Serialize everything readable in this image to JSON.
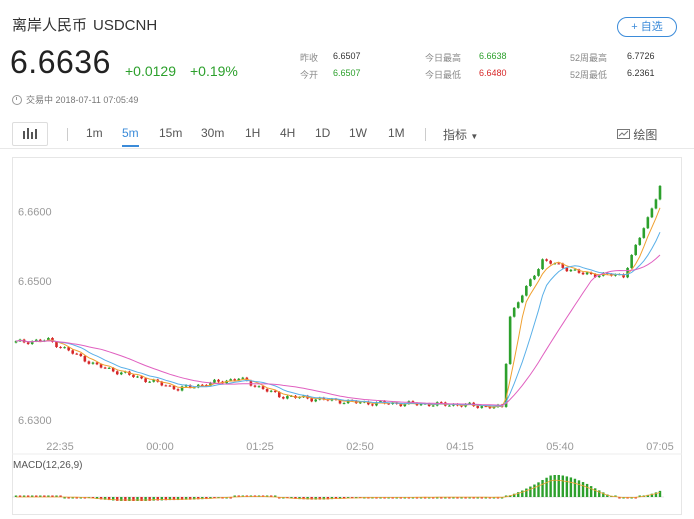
{
  "header": {
    "name": "离岸人民币",
    "symbol": "USDCNH",
    "watch_label": "+ 自选"
  },
  "quote": {
    "price": "6.6636",
    "change": "+0.0129",
    "change_pct": "+0.19%"
  },
  "stats": [
    {
      "label": "昨收",
      "value": "6.6507",
      "color": "#333333"
    },
    {
      "label": "今开",
      "value": "6.6507",
      "color": "#2ca02c"
    },
    {
      "label": "今日最高",
      "value": "6.6638",
      "color": "#2ca02c"
    },
    {
      "label": "今日最低",
      "value": "6.6480",
      "color": "#d62728"
    },
    {
      "label": "52周最高",
      "value": "6.7726",
      "color": "#333333"
    },
    {
      "label": "52周最低",
      "value": "6.2361",
      "color": "#333333"
    }
  ],
  "status": "交易中 2018-07-11 07:05:49",
  "toolbar": {
    "periods": [
      "1m",
      "5m",
      "15m",
      "30m",
      "1H",
      "4H",
      "1D",
      "1W",
      "1M"
    ],
    "active": "5m",
    "indicator": "指标",
    "draw": "绘图"
  },
  "colors": {
    "up": "#2ca02c",
    "down": "#d62728",
    "accent": "#3b8bd9",
    "ma_fast": "#f0a030",
    "ma_mid": "#5ab0e8",
    "ma_slow": "#e060c0"
  },
  "chart_data": {
    "type": "candlestick",
    "y_ticks": [
      "6.6600",
      "6.6500",
      "6.6300"
    ],
    "y_tick_values": [
      6.66,
      6.65,
      6.63
    ],
    "hidden_tick_value": 6.64,
    "ylim": [
      6.6283,
      6.6635
    ],
    "x_ticks": [
      "22:35",
      "00:00",
      "01:25",
      "02:50",
      "04:15",
      "05:40",
      "07:05"
    ],
    "key_points": [
      {
        "i": 0,
        "v": 6.6412
      },
      {
        "i": 8,
        "v": 6.6415
      },
      {
        "i": 20,
        "v": 6.6378
      },
      {
        "i": 40,
        "v": 6.6345
      },
      {
        "i": 55,
        "v": 6.636
      },
      {
        "i": 65,
        "v": 6.6335
      },
      {
        "i": 85,
        "v": 6.6325
      },
      {
        "i": 110,
        "v": 6.6322
      },
      {
        "i": 120,
        "v": 6.6318
      },
      {
        "i": 122,
        "v": 6.645
      },
      {
        "i": 130,
        "v": 6.653
      },
      {
        "i": 140,
        "v": 6.651
      },
      {
        "i": 150,
        "v": 6.6508
      },
      {
        "i": 156,
        "v": 6.659
      },
      {
        "i": 159,
        "v": 6.6636
      }
    ],
    "n": 160,
    "macd_label": "MACD(12,26,9)"
  }
}
